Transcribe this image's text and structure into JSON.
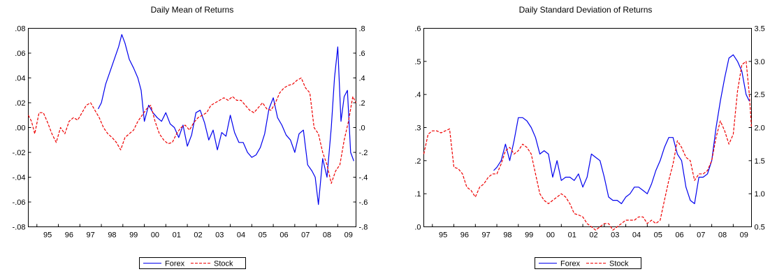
{
  "chart_data": [
    {
      "type": "line",
      "title": "Daily Mean of Returns",
      "x_ticks": [
        "95",
        "96",
        "97",
        "98",
        "99",
        "00",
        "01",
        "02",
        "03",
        "04",
        "05",
        "06",
        "07",
        "08",
        "09"
      ],
      "x_range": [
        1994.6,
        2009.85
      ],
      "y_left": {
        "ticks": [
          ".08",
          ".06",
          ".04",
          ".02",
          ".00",
          "-.02",
          "-.04",
          "-.06",
          "-.08"
        ],
        "lim": [
          -0.08,
          0.08
        ]
      },
      "y_right": {
        "ticks": [
          ".8",
          ".6",
          ".4",
          ".2",
          ".0",
          "-.2",
          "-.4",
          "-.6",
          "-.8"
        ],
        "lim": [
          -0.8,
          0.8
        ]
      },
      "grid": false,
      "legend": "bottom-center",
      "series": [
        {
          "name": "Forex",
          "axis": "left",
          "color": "#0000ee",
          "dash": "solid",
          "x": [
            1997.85,
            1998.0,
            1998.2,
            1998.4,
            1998.6,
            1998.8,
            1998.95,
            1999.1,
            1999.3,
            1999.5,
            1999.7,
            1999.85,
            2000.0,
            2000.2,
            2000.4,
            2000.6,
            2000.8,
            2001.0,
            2001.2,
            2001.4,
            2001.6,
            2001.8,
            2002.0,
            2002.2,
            2002.4,
            2002.6,
            2002.8,
            2003.0,
            2003.2,
            2003.4,
            2003.6,
            2003.8,
            2004.0,
            2004.2,
            2004.4,
            2004.6,
            2004.8,
            2005.0,
            2005.2,
            2005.4,
            2005.6,
            2005.8,
            2006.0,
            2006.2,
            2006.4,
            2006.6,
            2006.8,
            2007.0,
            2007.2,
            2007.4,
            2007.6,
            2007.8,
            2007.95,
            2008.1,
            2008.3,
            2008.5,
            2008.7,
            2008.85,
            2009.0,
            2009.15,
            2009.3,
            2009.45,
            2009.6,
            2009.75
          ],
          "values": [
            0.015,
            0.02,
            0.035,
            0.045,
            0.055,
            0.065,
            0.075,
            0.068,
            0.055,
            0.048,
            0.04,
            0.03,
            0.005,
            0.018,
            0.012,
            0.008,
            0.005,
            0.012,
            0.003,
            0.0,
            -0.008,
            0.002,
            -0.015,
            -0.006,
            0.012,
            0.014,
            0.004,
            -0.01,
            -0.002,
            -0.018,
            -0.004,
            -0.007,
            0.01,
            -0.004,
            -0.012,
            -0.012,
            -0.02,
            -0.024,
            -0.022,
            -0.016,
            -0.005,
            0.015,
            0.024,
            0.008,
            0.002,
            -0.006,
            -0.01,
            -0.02,
            -0.005,
            -0.002,
            -0.03,
            -0.035,
            -0.04,
            -0.062,
            -0.025,
            -0.04,
            0.0,
            0.04,
            0.065,
            0.005,
            0.025,
            0.03,
            -0.02,
            -0.027
          ]
        },
        {
          "name": "Stock",
          "axis": "right",
          "color": "#ee0000",
          "dash": "dashed",
          "x": [
            1994.6,
            1994.75,
            1994.9,
            1995.1,
            1995.3,
            1995.5,
            1995.7,
            1995.9,
            1996.1,
            1996.3,
            1996.5,
            1996.7,
            1996.9,
            1997.1,
            1997.3,
            1997.5,
            1997.7,
            1997.9,
            1998.1,
            1998.3,
            1998.5,
            1998.7,
            1998.9,
            1999.1,
            1999.3,
            1999.5,
            1999.7,
            1999.9,
            2000.1,
            2000.3,
            2000.5,
            2000.7,
            2000.9,
            2001.1,
            2001.3,
            2001.5,
            2001.7,
            2001.9,
            2002.1,
            2002.3,
            2002.5,
            2002.7,
            2002.9,
            2003.1,
            2003.3,
            2003.5,
            2003.7,
            2003.9,
            2004.1,
            2004.3,
            2004.5,
            2004.7,
            2004.9,
            2005.1,
            2005.3,
            2005.5,
            2005.7,
            2005.9,
            2006.1,
            2006.3,
            2006.5,
            2006.7,
            2006.9,
            2007.1,
            2007.3,
            2007.5,
            2007.7,
            2007.9,
            2008.1,
            2008.3,
            2008.5,
            2008.7,
            2008.9,
            2009.1,
            2009.3,
            2009.5,
            2009.7,
            2009.85
          ],
          "values": [
            0.1,
            0.05,
            -0.05,
            0.12,
            0.12,
            0.04,
            -0.05,
            -0.12,
            0.0,
            -0.05,
            0.05,
            0.08,
            0.06,
            0.12,
            0.18,
            0.2,
            0.14,
            0.08,
            0.0,
            -0.05,
            -0.08,
            -0.12,
            -0.18,
            -0.08,
            -0.05,
            -0.02,
            0.05,
            0.1,
            0.15,
            0.18,
            0.05,
            -0.05,
            -0.1,
            -0.13,
            -0.12,
            -0.05,
            0.0,
            0.02,
            -0.02,
            0.04,
            0.08,
            0.1,
            0.12,
            0.18,
            0.2,
            0.22,
            0.24,
            0.22,
            0.25,
            0.22,
            0.22,
            0.18,
            0.14,
            0.12,
            0.16,
            0.2,
            0.15,
            0.14,
            0.2,
            0.28,
            0.32,
            0.34,
            0.35,
            0.38,
            0.4,
            0.32,
            0.28,
            0.0,
            -0.05,
            -0.2,
            -0.3,
            -0.45,
            -0.35,
            -0.3,
            -0.1,
            0.05,
            0.25,
            0.2
          ]
        }
      ]
    },
    {
      "type": "line",
      "title": "Daily Standard Deviation of Returns",
      "x_ticks": [
        "95",
        "96",
        "97",
        "98",
        "99",
        "00",
        "01",
        "02",
        "03",
        "04",
        "05",
        "06",
        "07",
        "08",
        "09"
      ],
      "x_range": [
        1994.6,
        2009.85
      ],
      "y_left": {
        "ticks": [
          ".6",
          ".5",
          ".4",
          ".3",
          ".2",
          ".1",
          ".0"
        ],
        "lim": [
          0,
          0.6
        ]
      },
      "y_right": {
        "ticks": [
          "3.5",
          "3.0",
          "2.5",
          "2.0",
          "1.5",
          "1.0",
          "0.5"
        ],
        "lim": [
          0.5,
          3.5
        ]
      },
      "grid": false,
      "legend": "bottom-center",
      "series": [
        {
          "name": "Forex",
          "axis": "left",
          "color": "#0000ee",
          "dash": "solid",
          "x": [
            1997.85,
            1998.0,
            1998.2,
            1998.4,
            1998.6,
            1998.8,
            1999.0,
            1999.2,
            1999.4,
            1999.6,
            1999.8,
            2000.0,
            2000.2,
            2000.4,
            2000.6,
            2000.8,
            2001.0,
            2001.2,
            2001.4,
            2001.6,
            2001.8,
            2002.0,
            2002.2,
            2002.4,
            2002.6,
            2002.8,
            2003.0,
            2003.2,
            2003.4,
            2003.6,
            2003.8,
            2004.0,
            2004.2,
            2004.4,
            2004.6,
            2004.8,
            2005.0,
            2005.2,
            2005.4,
            2005.6,
            2005.8,
            2006.0,
            2006.2,
            2006.4,
            2006.6,
            2006.8,
            2007.0,
            2007.2,
            2007.4,
            2007.6,
            2007.8,
            2008.0,
            2008.2,
            2008.4,
            2008.6,
            2008.8,
            2009.0,
            2009.2,
            2009.4,
            2009.6,
            2009.75
          ],
          "values": [
            0.17,
            0.18,
            0.2,
            0.25,
            0.2,
            0.26,
            0.33,
            0.33,
            0.32,
            0.3,
            0.27,
            0.22,
            0.23,
            0.22,
            0.15,
            0.2,
            0.14,
            0.15,
            0.15,
            0.14,
            0.16,
            0.12,
            0.15,
            0.22,
            0.21,
            0.2,
            0.15,
            0.09,
            0.08,
            0.08,
            0.07,
            0.09,
            0.1,
            0.12,
            0.12,
            0.11,
            0.1,
            0.13,
            0.17,
            0.2,
            0.24,
            0.27,
            0.27,
            0.22,
            0.2,
            0.12,
            0.08,
            0.07,
            0.15,
            0.15,
            0.16,
            0.2,
            0.3,
            0.38,
            0.45,
            0.51,
            0.52,
            0.5,
            0.47,
            0.4,
            0.38
          ]
        },
        {
          "name": "Stock",
          "axis": "right",
          "color": "#ee0000",
          "dash": "dashed",
          "x": [
            1994.6,
            1994.8,
            1995.0,
            1995.2,
            1995.4,
            1995.6,
            1995.8,
            1996.0,
            1996.2,
            1996.4,
            1996.6,
            1996.8,
            1997.0,
            1997.2,
            1997.4,
            1997.6,
            1997.8,
            1998.0,
            1998.2,
            1998.4,
            1998.6,
            1998.8,
            1999.0,
            1999.2,
            1999.4,
            1999.6,
            1999.8,
            2000.0,
            2000.2,
            2000.4,
            2000.6,
            2000.8,
            2001.0,
            2001.2,
            2001.4,
            2001.6,
            2001.8,
            2002.0,
            2002.2,
            2002.4,
            2002.6,
            2002.8,
            2003.0,
            2003.2,
            2003.4,
            2003.6,
            2003.8,
            2004.0,
            2004.2,
            2004.4,
            2004.6,
            2004.8,
            2005.0,
            2005.2,
            2005.4,
            2005.6,
            2005.8,
            2006.0,
            2006.2,
            2006.4,
            2006.6,
            2006.8,
            2007.0,
            2007.2,
            2007.4,
            2007.6,
            2007.8,
            2008.0,
            2008.2,
            2008.4,
            2008.6,
            2008.8,
            2009.0,
            2009.2,
            2009.4,
            2009.6,
            2009.75,
            2009.85
          ],
          "values": [
            1.6,
            1.9,
            1.95,
            1.95,
            1.92,
            1.95,
            1.98,
            1.4,
            1.38,
            1.3,
            1.1,
            1.05,
            0.95,
            1.1,
            1.15,
            1.25,
            1.3,
            1.3,
            1.45,
            1.65,
            1.7,
            1.6,
            1.65,
            1.75,
            1.7,
            1.6,
            1.3,
            1.0,
            0.9,
            0.85,
            0.9,
            0.95,
            1.0,
            0.95,
            0.85,
            0.7,
            0.68,
            0.65,
            0.55,
            0.5,
            0.45,
            0.5,
            0.55,
            0.55,
            0.45,
            0.5,
            0.55,
            0.6,
            0.6,
            0.6,
            0.65,
            0.65,
            0.55,
            0.6,
            0.55,
            0.6,
            0.9,
            1.2,
            1.45,
            1.8,
            1.7,
            1.55,
            1.5,
            1.2,
            1.3,
            1.3,
            1.35,
            1.5,
            1.85,
            2.1,
            1.95,
            1.75,
            1.9,
            2.55,
            2.95,
            3.0,
            2.5,
            2.0
          ]
        }
      ]
    }
  ]
}
